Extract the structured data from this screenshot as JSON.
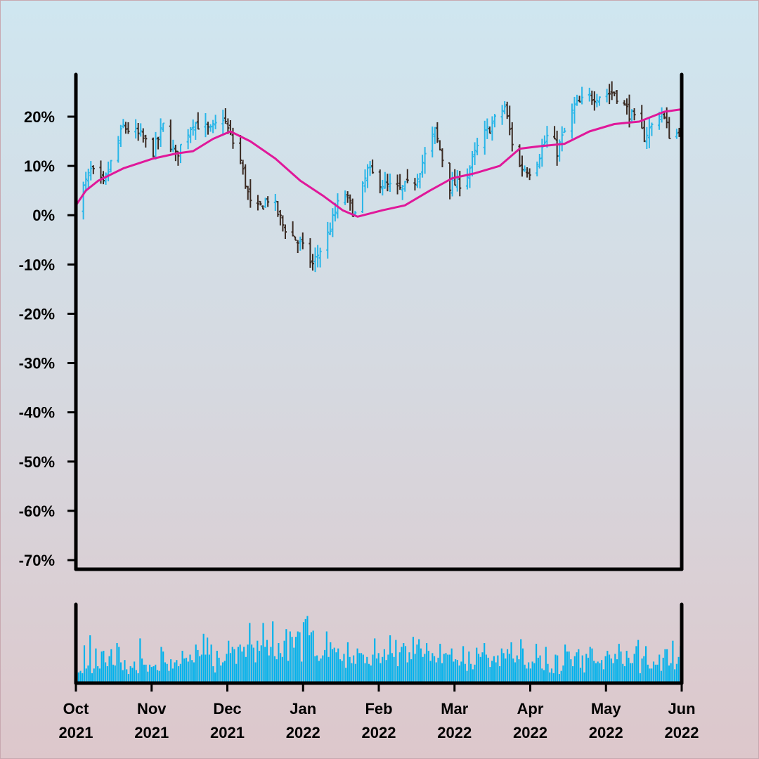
{
  "chart_data": [
    {
      "type": "ohlc",
      "title": "",
      "xlabel": "",
      "ylabel": "",
      "y_unit": "%",
      "ylim": [
        -70,
        28
      ],
      "y_ticks": [
        "20%",
        "10%",
        "0%",
        "-10%",
        "-20%",
        "-30%",
        "-40%",
        "-50%",
        "-60%",
        "-70%"
      ],
      "x_ticks": [
        {
          "month": "Oct",
          "year": "2021"
        },
        {
          "month": "Nov",
          "year": "2021"
        },
        {
          "month": "Dec",
          "year": "2021"
        },
        {
          "month": "Jan",
          "year": "2022"
        },
        {
          "month": "Feb",
          "year": "2022"
        },
        {
          "month": "Mar",
          "year": "2022"
        },
        {
          "month": "Apr",
          "year": "2022"
        },
        {
          "month": "May",
          "year": "2022"
        },
        {
          "month": "Jun",
          "year": "2022"
        }
      ],
      "date_range": [
        "2021-10-01",
        "2022-06-01"
      ],
      "close_anchors": [
        [
          "2021-10-01",
          2
        ],
        [
          "2021-10-07",
          9
        ],
        [
          "2021-10-12",
          6
        ],
        [
          "2021-10-20",
          18
        ],
        [
          "2021-10-27",
          16
        ],
        [
          "2021-11-01",
          13
        ],
        [
          "2021-11-05",
          18
        ],
        [
          "2021-11-10",
          12
        ],
        [
          "2021-11-17",
          19
        ],
        [
          "2021-11-24",
          17
        ],
        [
          "2021-11-29",
          20
        ],
        [
          "2021-12-02",
          16
        ],
        [
          "2021-12-06",
          11
        ],
        [
          "2021-12-11",
          0
        ],
        [
          "2021-12-18",
          4
        ],
        [
          "2021-12-23",
          -2
        ],
        [
          "2021-12-30",
          -6
        ],
        [
          "2022-01-04",
          -10
        ],
        [
          "2022-01-10",
          -4
        ],
        [
          "2022-01-16",
          5
        ],
        [
          "2022-01-21",
          0
        ],
        [
          "2022-01-26",
          9
        ],
        [
          "2022-02-02",
          6
        ],
        [
          "2022-02-08",
          5
        ],
        [
          "2022-02-14",
          7
        ],
        [
          "2022-02-22",
          17
        ],
        [
          "2022-02-28",
          6
        ],
        [
          "2022-03-06",
          7
        ],
        [
          "2022-03-12",
          15
        ],
        [
          "2022-03-22",
          22
        ],
        [
          "2022-03-27",
          10
        ],
        [
          "2022-04-02",
          9
        ],
        [
          "2022-04-09",
          17
        ],
        [
          "2022-04-12",
          13
        ],
        [
          "2022-04-19",
          22
        ],
        [
          "2022-04-25",
          24
        ],
        [
          "2022-05-05",
          25
        ],
        [
          "2022-05-12",
          20
        ],
        [
          "2022-05-17",
          16
        ],
        [
          "2022-05-24",
          21
        ],
        [
          "2022-05-28",
          15
        ],
        [
          "2022-06-01",
          18
        ]
      ],
      "moving_average": [
        [
          "2021-10-01",
          2
        ],
        [
          "2021-10-05",
          5
        ],
        [
          "2021-10-10",
          7
        ],
        [
          "2021-10-20",
          9.5
        ],
        [
          "2021-11-01",
          11.5
        ],
        [
          "2021-11-10",
          12.5
        ],
        [
          "2021-11-17",
          13
        ],
        [
          "2021-11-25",
          15.5
        ],
        [
          "2021-12-02",
          17
        ],
        [
          "2021-12-10",
          15
        ],
        [
          "2021-12-20",
          11.5
        ],
        [
          "2021-12-30",
          7
        ],
        [
          "2022-01-08",
          4
        ],
        [
          "2022-01-16",
          1
        ],
        [
          "2022-01-22",
          -0.3
        ],
        [
          "2022-02-01",
          1
        ],
        [
          "2022-02-10",
          2
        ],
        [
          "2022-02-20",
          5
        ],
        [
          "2022-03-01",
          7.5
        ],
        [
          "2022-03-10",
          8.5
        ],
        [
          "2022-03-20",
          10
        ],
        [
          "2022-03-28",
          13.5
        ],
        [
          "2022-04-05",
          14
        ],
        [
          "2022-04-15",
          14.5
        ],
        [
          "2022-04-25",
          17
        ],
        [
          "2022-05-05",
          18.5
        ],
        [
          "2022-05-15",
          19
        ],
        [
          "2022-05-25",
          21
        ],
        [
          "2022-06-01",
          21.5
        ]
      ],
      "colors": {
        "up": "#29b6e8",
        "down": "#3a2a22",
        "moving_average": "#e0189a",
        "volume": "#00b2ec"
      }
    },
    {
      "type": "bar",
      "series": "volume",
      "values": [
        55,
        12,
        14,
        11,
        47,
        17,
        21,
        60,
        11,
        17,
        43,
        20,
        17,
        39,
        40,
        25,
        20,
        33,
        42,
        22,
        21,
        50,
        45,
        25,
        15,
        28,
        16,
        10,
        20,
        18,
        26,
        15,
        11,
        56,
        30,
        22,
        22,
        13,
        22,
        19,
        20,
        22,
        15,
        14,
        45,
        39,
        25,
        23,
        14,
        29,
        17,
        25,
        28,
        20,
        23,
        40,
        30,
        31,
        26,
        35,
        28,
        25,
        48,
        41,
        33,
        35,
        62,
        35,
        57,
        35,
        48,
        20,
        12,
        40,
        31,
        21,
        25,
        27,
        36,
        53,
        37,
        45,
        42,
        23,
        45,
        48,
        39,
        45,
        32,
        48,
        76,
        48,
        44,
        25,
        53,
        40,
        47,
        76,
        45,
        54,
        34,
        45,
        78,
        33,
        29,
        50,
        37,
        32,
        53,
        68,
        27,
        65,
        58,
        44,
        58,
        65,
        64,
        26,
        77,
        81,
        85,
        60,
        64,
        66,
        33,
        34,
        27,
        30,
        34,
        41,
        65,
        32,
        51,
        42,
        44,
        38,
        43,
        29,
        27,
        36,
        18,
        51,
        32,
        24,
        34,
        23,
        43,
        37,
        37,
        35,
        24,
        32,
        23,
        21,
        35,
        56,
        30,
        37,
        24,
        32,
        42,
        28,
        35,
        60,
        37,
        32,
        54,
        20,
        38,
        45,
        50,
        46,
        25,
        38,
        29,
        58,
        36,
        48,
        55,
        43,
        32,
        36,
        50,
        40,
        27,
        37,
        33,
        25,
        31,
        49,
        24,
        36,
        37,
        35,
        35,
        43,
        26,
        29,
        28,
        21,
        26,
        46,
        23,
        14,
        39,
        23,
        16,
        22,
        44,
        36,
        32,
        38,
        50,
        35,
        31,
        19,
        27,
        33,
        25,
        34,
        20,
        43,
        37,
        30,
        42,
        36,
        51,
        30,
        25,
        34,
        29,
        55,
        43,
        22,
        17,
        25,
        17,
        26,
        24,
        49,
        31,
        34,
        17,
        15,
        45,
        23,
        12,
        17,
        11,
        35,
        34,
        10,
        14,
        21,
        48,
        39,
        39,
        29,
        20,
        33,
        38,
        42,
        18,
        34,
        12,
        36,
        31,
        45,
        43,
        27,
        24,
        26,
        24,
        28,
        16,
        33,
        40,
        35,
        30,
        24,
        36,
        29,
        49,
        39,
        23,
        20,
        40,
        31,
        24,
        24,
        36,
        46,
        54,
        11,
        30,
        33,
        46,
        22,
        17,
        17,
        26,
        22,
        22,
        35,
        14,
        31,
        42,
        42,
        21,
        24,
        53,
        16,
        23,
        32,
        46
      ]
    }
  ]
}
